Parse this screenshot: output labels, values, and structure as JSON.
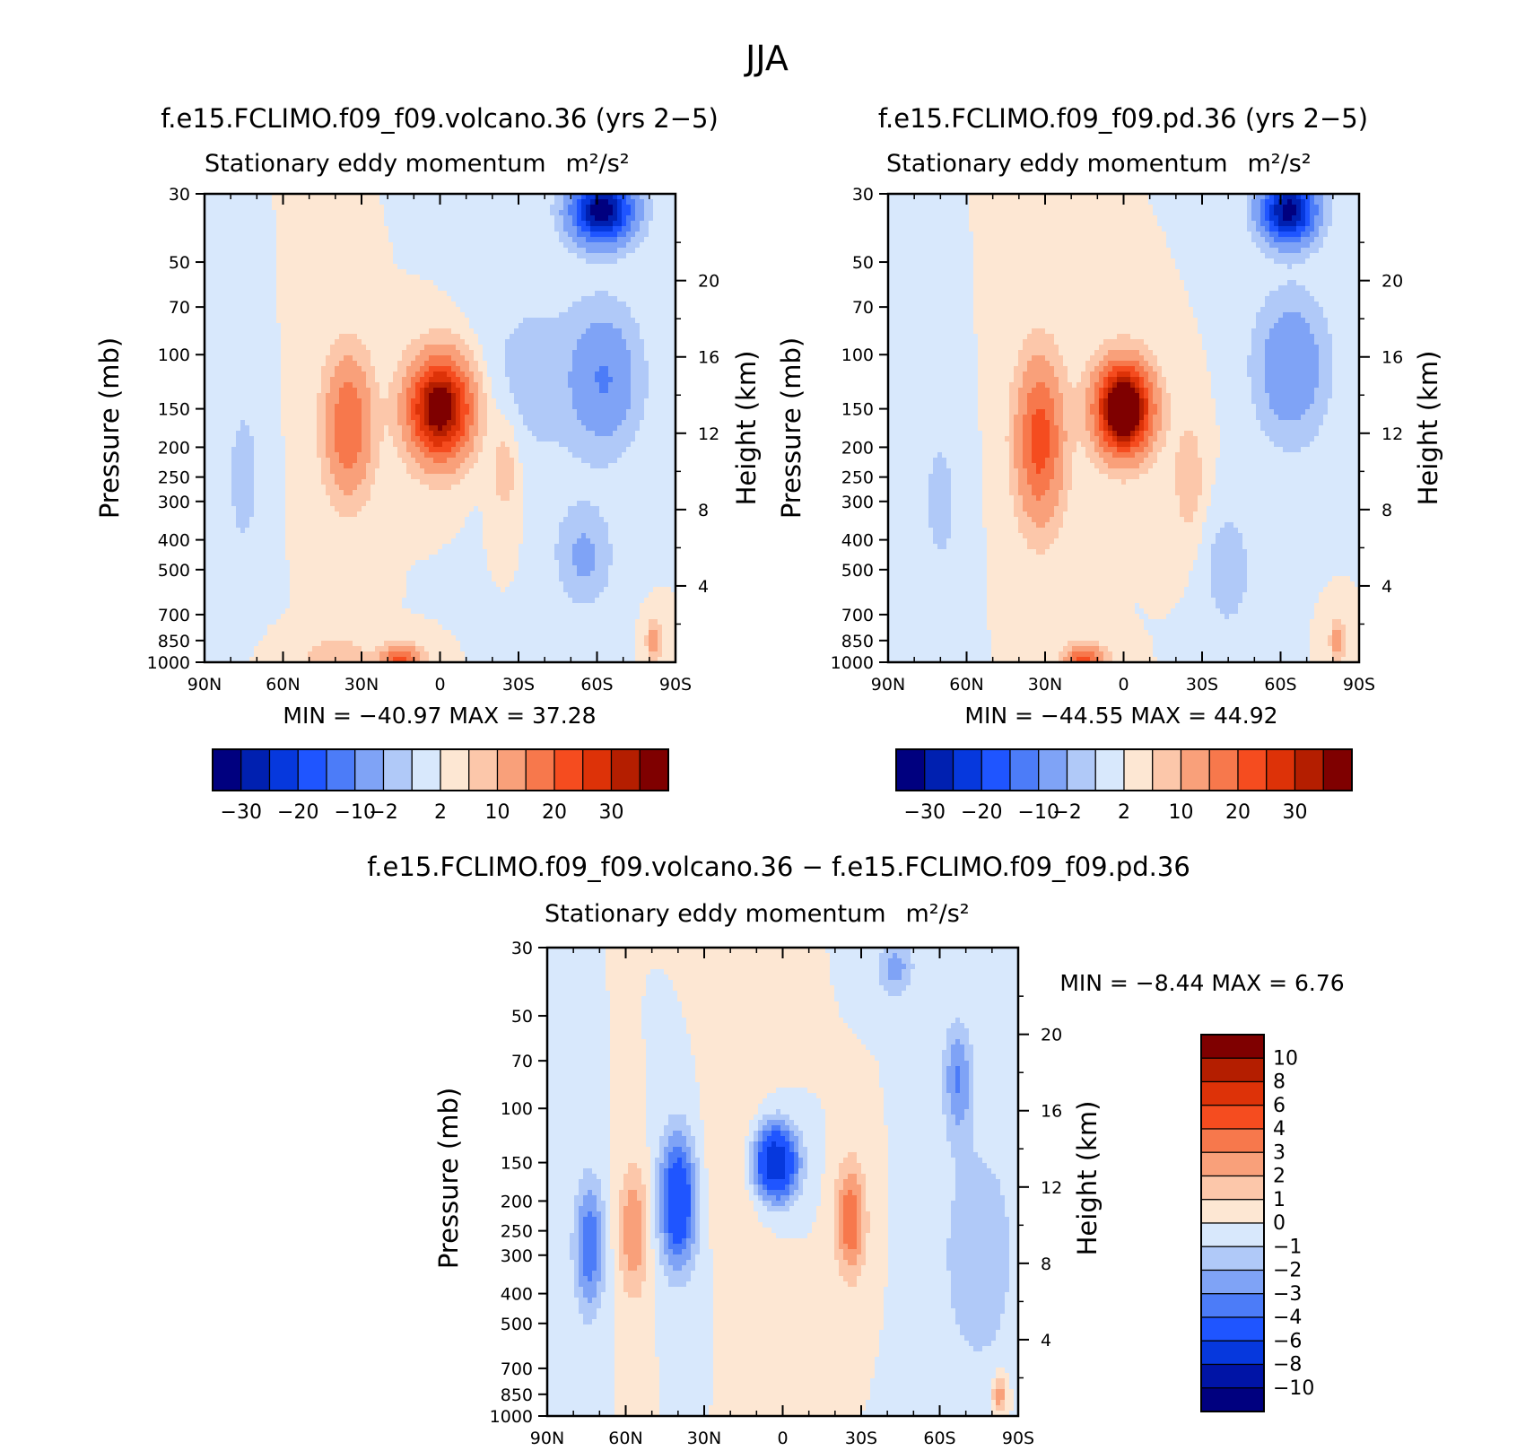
{
  "figure": {
    "title": "JJA",
    "colors": {
      "abs_levels": [
        "#00007f",
        "#0020b0",
        "#0638dd",
        "#1f55ff",
        "#4c7cf8",
        "#7fa3f6",
        "#b0c9f8",
        "#d8e8fc",
        "#fde7d3",
        "#fcc7aa",
        "#f9a07a",
        "#f7784c",
        "#f54c1f",
        "#dd3208",
        "#b41e00",
        "#7f0000"
      ],
      "diff_levels": [
        "#00007f",
        "#0014a6",
        "#0638dd",
        "#1f55ff",
        "#4c7cf8",
        "#7fa3f6",
        "#b0c9f8",
        "#d8e8fc",
        "#fde7d3",
        "#fcc7aa",
        "#f9a07a",
        "#f7784c",
        "#f54c1f",
        "#dd3208",
        "#b41e00",
        "#7f0000"
      ]
    }
  },
  "panels": [
    {
      "id": "volcano",
      "title": "f.e15.FCLIMO.f09_f09.volcano.36 (yrs 2−5)",
      "subtitle": "Stationary eddy momentum",
      "units": "m²/s²",
      "ylabel": "Pressure (mb)",
      "y2label": "Height (km)",
      "stats": "MIN =  −40.97   MAX =   37.28",
      "colorbar_labels": [
        "−30",
        "−20",
        "−10",
        "−2",
        "2",
        "10",
        "20",
        "30"
      ]
    },
    {
      "id": "pd",
      "title": "f.e15.FCLIMO.f09_f09.pd.36 (yrs 2−5)",
      "subtitle": "Stationary eddy momentum",
      "units": "m²/s²",
      "ylabel": "Pressure (mb)",
      "y2label": "Height (km)",
      "stats": "MIN =  −44.55   MAX =   44.92",
      "colorbar_labels": [
        "−30",
        "−20",
        "−10",
        "−2",
        "2",
        "10",
        "20",
        "30"
      ]
    },
    {
      "id": "diff",
      "title": "f.e15.FCLIMO.f09_f09.volcano.36 − f.e15.FCLIMO.f09_f09.pd.36",
      "subtitle": "Stationary eddy momentum",
      "units": "m²/s²",
      "ylabel": "Pressure (mb)",
      "y2label": "Height (km)",
      "stats": "MIN =   −8.44   MAX =    6.76",
      "colorbar_labels": [
        "10",
        "8",
        "6",
        "4",
        "3",
        "2",
        "1",
        "0",
        "−1",
        "−2",
        "−3",
        "−4",
        "−6",
        "−8",
        "−10"
      ]
    }
  ],
  "chart_data": {
    "type": "heatmap",
    "x_tick_labels": [
      "90N",
      "60N",
      "30N",
      "0",
      "30S",
      "60S",
      "90S"
    ],
    "x_ticks_deg": [
      90,
      60,
      30,
      0,
      -30,
      -60,
      -90
    ],
    "y_tick_labels": [
      "30",
      "50",
      "70",
      "100",
      "150",
      "200",
      "250",
      "300",
      "400",
      "500",
      "700",
      "850",
      "1000"
    ],
    "y_ticks_mb": [
      30,
      50,
      70,
      100,
      150,
      200,
      250,
      300,
      400,
      500,
      700,
      850,
      1000
    ],
    "y2_tick_labels": [
      "20",
      "16",
      "12",
      "8",
      "4"
    ],
    "y2_ticks_km": [
      20,
      16,
      12,
      8,
      4
    ],
    "ylim_mb": [
      1000,
      30
    ],
    "abs_contour_levels": [
      -30,
      -25,
      -20,
      -15,
      -10,
      -5,
      -2,
      0,
      2,
      5,
      10,
      15,
      20,
      25,
      30
    ],
    "diff_contour_levels": [
      -10,
      -8,
      -6,
      -4,
      -3,
      -2,
      -1,
      0,
      1,
      2,
      3,
      4,
      6,
      8,
      10
    ],
    "volcano_features": [
      {
        "lat": -62,
        "p": 34,
        "amp": -34,
        "slat": 8,
        "sz": 0.16
      },
      {
        "lat": -63,
        "p": 120,
        "amp": -10,
        "slat": 9,
        "sz": 0.35
      },
      {
        "lat": -55,
        "p": 450,
        "amp": -6,
        "slat": 7,
        "sz": 0.25
      },
      {
        "lat": -35,
        "p": 120,
        "amp": -3,
        "slat": 14,
        "sz": 0.5
      },
      {
        "lat": 0,
        "p": 150,
        "amp": 36,
        "slat": 8,
        "sz": 0.25
      },
      {
        "lat": 35,
        "p": 170,
        "amp": 15,
        "slat": 6,
        "sz": 0.35
      },
      {
        "lat": -25,
        "p": 230,
        "amp": 4,
        "slat": 4,
        "sz": 0.28
      },
      {
        "lat": 75,
        "p": 250,
        "amp": -4,
        "slat": 4,
        "sz": 0.35
      },
      {
        "lat": 15,
        "p": 980,
        "amp": 17,
        "slat": 5,
        "sz": 0.07
      },
      {
        "lat": 40,
        "p": 950,
        "amp": 5,
        "slat": 8,
        "sz": 0.08
      },
      {
        "lat": -82,
        "p": 850,
        "amp": 8,
        "slat": 2,
        "sz": 0.1
      }
    ],
    "pd_features": [
      {
        "lat": -63,
        "p": 34,
        "amp": -33,
        "slat": 7,
        "sz": 0.16
      },
      {
        "lat": -64,
        "p": 110,
        "amp": -10,
        "slat": 9,
        "sz": 0.35
      },
      {
        "lat": -40,
        "p": 500,
        "amp": -4,
        "slat": 6,
        "sz": 0.3
      },
      {
        "lat": 0,
        "p": 150,
        "amp": 44,
        "slat": 7,
        "sz": 0.22
      },
      {
        "lat": 32,
        "p": 190,
        "amp": 18,
        "slat": 6,
        "sz": 0.4
      },
      {
        "lat": -25,
        "p": 250,
        "amp": 4,
        "slat": 4,
        "sz": 0.3
      },
      {
        "lat": 70,
        "p": 300,
        "amp": -3,
        "slat": 5,
        "sz": 0.4
      },
      {
        "lat": 15,
        "p": 980,
        "amp": 17,
        "slat": 5,
        "sz": 0.07
      },
      {
        "lat": -82,
        "p": 850,
        "amp": 8,
        "slat": 2,
        "sz": 0.1
      }
    ],
    "diff_features": [
      {
        "lat": 3,
        "p": 150,
        "amp": -8.4,
        "slat": 6,
        "sz": 0.2
      },
      {
        "lat": 40,
        "p": 200,
        "amp": -6,
        "slat": 5,
        "sz": 0.35
      },
      {
        "lat": 74,
        "p": 280,
        "amp": -4,
        "slat": 4,
        "sz": 0.35
      },
      {
        "lat": 57,
        "p": 250,
        "amp": 3,
        "slat": 4,
        "sz": 0.35
      },
      {
        "lat": -26,
        "p": 230,
        "amp": 4,
        "slat": 4,
        "sz": 0.3
      },
      {
        "lat": -67,
        "p": 80,
        "amp": -3,
        "slat": 4,
        "sz": 0.3
      },
      {
        "lat": -43,
        "p": 35,
        "amp": -2.5,
        "slat": 5,
        "sz": 0.15
      },
      {
        "lat": -75,
        "p": 300,
        "amp": -2,
        "slat": 10,
        "sz": 0.6
      },
      {
        "lat": 15,
        "p": 150,
        "amp": 1.2,
        "slat": 10,
        "sz": 0.4
      },
      {
        "lat": -83,
        "p": 850,
        "amp": 3,
        "slat": 2,
        "sz": 0.1
      }
    ]
  }
}
